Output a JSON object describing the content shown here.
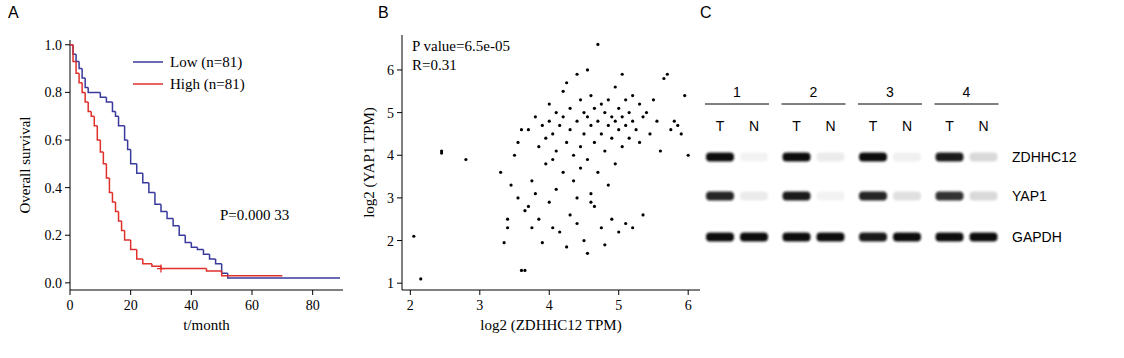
{
  "chart_data": [
    {
      "type": "line",
      "panel_label": "A",
      "line_style": "step",
      "xlabel": "t/month",
      "ylabel": "Overall survival",
      "xlim": [
        0,
        90
      ],
      "ylim": [
        -0.03,
        1.02
      ],
      "xticks": [
        0,
        20,
        40,
        60,
        80
      ],
      "yticks": [
        {
          "value": 0,
          "label": "0.0"
        },
        0.2,
        0.4,
        0.6,
        0.8,
        {
          "value": 1,
          "label": "1.0"
        }
      ],
      "annotation": "P=0.000 33",
      "legend": "upper right",
      "series": [
        {
          "name": "Low (n=81)",
          "color": "#3a3a9c",
          "x": [
            0,
            1,
            2,
            3,
            4,
            5,
            6,
            10,
            12,
            14,
            15,
            16,
            18,
            19,
            20,
            22,
            24,
            26,
            28,
            30,
            32,
            34,
            36,
            38,
            40,
            42,
            44,
            46,
            48,
            50,
            52,
            89
          ],
          "values": [
            1,
            0.96,
            0.93,
            0.9,
            0.86,
            0.82,
            0.8,
            0.78,
            0.76,
            0.72,
            0.7,
            0.66,
            0.6,
            0.56,
            0.5,
            0.46,
            0.42,
            0.38,
            0.33,
            0.3,
            0.27,
            0.24,
            0.2,
            0.17,
            0.15,
            0.14,
            0.12,
            0.1,
            0.08,
            0.04,
            0.02,
            0.02
          ]
        },
        {
          "name": "High (n=81)",
          "color": "#e0302c",
          "x": [
            0,
            1,
            2,
            3,
            4,
            5,
            6,
            7,
            8,
            9,
            10,
            11,
            12,
            13,
            14,
            15,
            16,
            17,
            18,
            20,
            22,
            24,
            27,
            30,
            45,
            50,
            70
          ],
          "values": [
            1,
            0.93,
            0.88,
            0.84,
            0.8,
            0.76,
            0.72,
            0.7,
            0.66,
            0.6,
            0.55,
            0.5,
            0.44,
            0.38,
            0.34,
            0.3,
            0.26,
            0.22,
            0.18,
            0.14,
            0.1,
            0.08,
            0.07,
            0.06,
            0.05,
            0.03,
            0.03
          ],
          "censored": [
            30
          ]
        }
      ]
    },
    {
      "type": "scatter",
      "panel_label": "B",
      "xlabel": "log2 (ZDHHC12 TPM)",
      "ylabel": "log2 (YAP1 TPM)",
      "xlim": [
        1.88,
        6.17
      ],
      "ylim": [
        0.84,
        6.82
      ],
      "xticks": [
        2,
        3,
        4,
        5,
        6
      ],
      "yticks": [
        1,
        2,
        3,
        4,
        5,
        6
      ],
      "annotations": [
        "P value=6.5e-05",
        "R=0.31"
      ],
      "color": "#000000",
      "x": [
        2.15,
        2.05,
        2.45,
        2.45,
        2.8,
        3.3,
        3.35,
        3.4,
        3.4,
        3.45,
        3.5,
        3.55,
        3.55,
        3.6,
        3.65,
        3.65,
        3.7,
        3.7,
        3.75,
        3.75,
        3.8,
        3.8,
        3.85,
        3.85,
        3.9,
        3.9,
        3.95,
        3.95,
        4.0,
        4.0,
        4.0,
        4.05,
        4.05,
        4.1,
        4.1,
        4.1,
        4.15,
        4.15,
        4.2,
        4.2,
        4.2,
        4.25,
        4.25,
        4.3,
        4.3,
        4.3,
        4.35,
        4.35,
        4.4,
        4.4,
        4.4,
        4.45,
        4.45,
        4.45,
        4.5,
        4.5,
        4.5,
        4.55,
        4.55,
        4.55,
        4.6,
        4.6,
        4.6,
        4.65,
        4.65,
        4.65,
        4.7,
        4.7,
        4.7,
        4.75,
        4.75,
        4.75,
        4.8,
        4.8,
        4.8,
        4.85,
        4.85,
        4.85,
        4.9,
        4.9,
        4.9,
        4.95,
        4.95,
        4.95,
        5.0,
        5.0,
        5.0,
        5.05,
        5.05,
        5.05,
        5.1,
        5.1,
        5.1,
        5.15,
        5.15,
        5.2,
        5.2,
        5.2,
        5.25,
        5.3,
        5.3,
        5.35,
        5.35,
        5.4,
        5.45,
        5.5,
        5.55,
        5.6,
        5.65,
        5.7,
        5.75,
        5.8,
        5.85,
        5.9,
        5.95,
        6.0,
        4.25,
        4.55,
        3.6,
        4.05,
        4.6,
        4.4
      ],
      "values": [
        1.1,
        2.1,
        4.1,
        4.05,
        3.9,
        3.6,
        1.95,
        2.3,
        2.5,
        3.3,
        4.0,
        4.3,
        3.0,
        1.3,
        1.3,
        2.7,
        2.8,
        4.6,
        2.3,
        3.4,
        4.9,
        3.1,
        4.2,
        2.5,
        1.95,
        4.7,
        4.4,
        3.8,
        5.2,
        4.8,
        2.9,
        4.5,
        3.9,
        5.0,
        4.1,
        3.2,
        4.7,
        2.2,
        5.5,
        4.9,
        3.6,
        4.3,
        1.85,
        5.1,
        4.6,
        2.6,
        4.0,
        3.4,
        4.8,
        5.9,
        2.4,
        5.3,
        4.2,
        3.7,
        5.0,
        4.5,
        2.0,
        4.9,
        3.9,
        1.7,
        5.4,
        4.7,
        3.1,
        5.1,
        4.3,
        2.8,
        6.6,
        4.8,
        3.6,
        5.2,
        4.5,
        2.3,
        5.0,
        4.1,
        1.9,
        5.3,
        4.7,
        3.3,
        4.9,
        4.4,
        2.5,
        5.6,
        4.8,
        3.8,
        5.1,
        4.6,
        2.2,
        4.9,
        4.2,
        5.9,
        5.3,
        4.7,
        2.4,
        5.0,
        4.4,
        5.4,
        4.8,
        2.3,
        4.6,
        5.2,
        4.3,
        4.9,
        2.6,
        5.0,
        4.5,
        5.3,
        4.8,
        4.1,
        5.8,
        5.9,
        4.6,
        4.8,
        4.7,
        4.5,
        5.4,
        4.0,
        5.7,
        6.0,
        4.6,
        2.3,
        2.9,
        3.0
      ]
    }
  ],
  "blot": {
    "panel_label": "C",
    "samples": [
      "1",
      "2",
      "3",
      "4"
    ],
    "lanes": [
      "T",
      "N"
    ],
    "proteins": [
      "ZDHHC12",
      "YAP1",
      "GAPDH"
    ],
    "band_intensity": [
      [
        [
          1,
          0.05
        ],
        [
          1,
          0.08
        ],
        [
          1,
          0.06
        ],
        [
          0.95,
          0.15
        ]
      ],
      [
        [
          0.9,
          0.08
        ],
        [
          0.95,
          0.05
        ],
        [
          0.9,
          0.12
        ],
        [
          0.85,
          0.15
        ]
      ],
      [
        [
          1,
          1
        ],
        [
          1,
          1
        ],
        [
          0.95,
          1
        ],
        [
          1,
          1
        ]
      ]
    ]
  }
}
